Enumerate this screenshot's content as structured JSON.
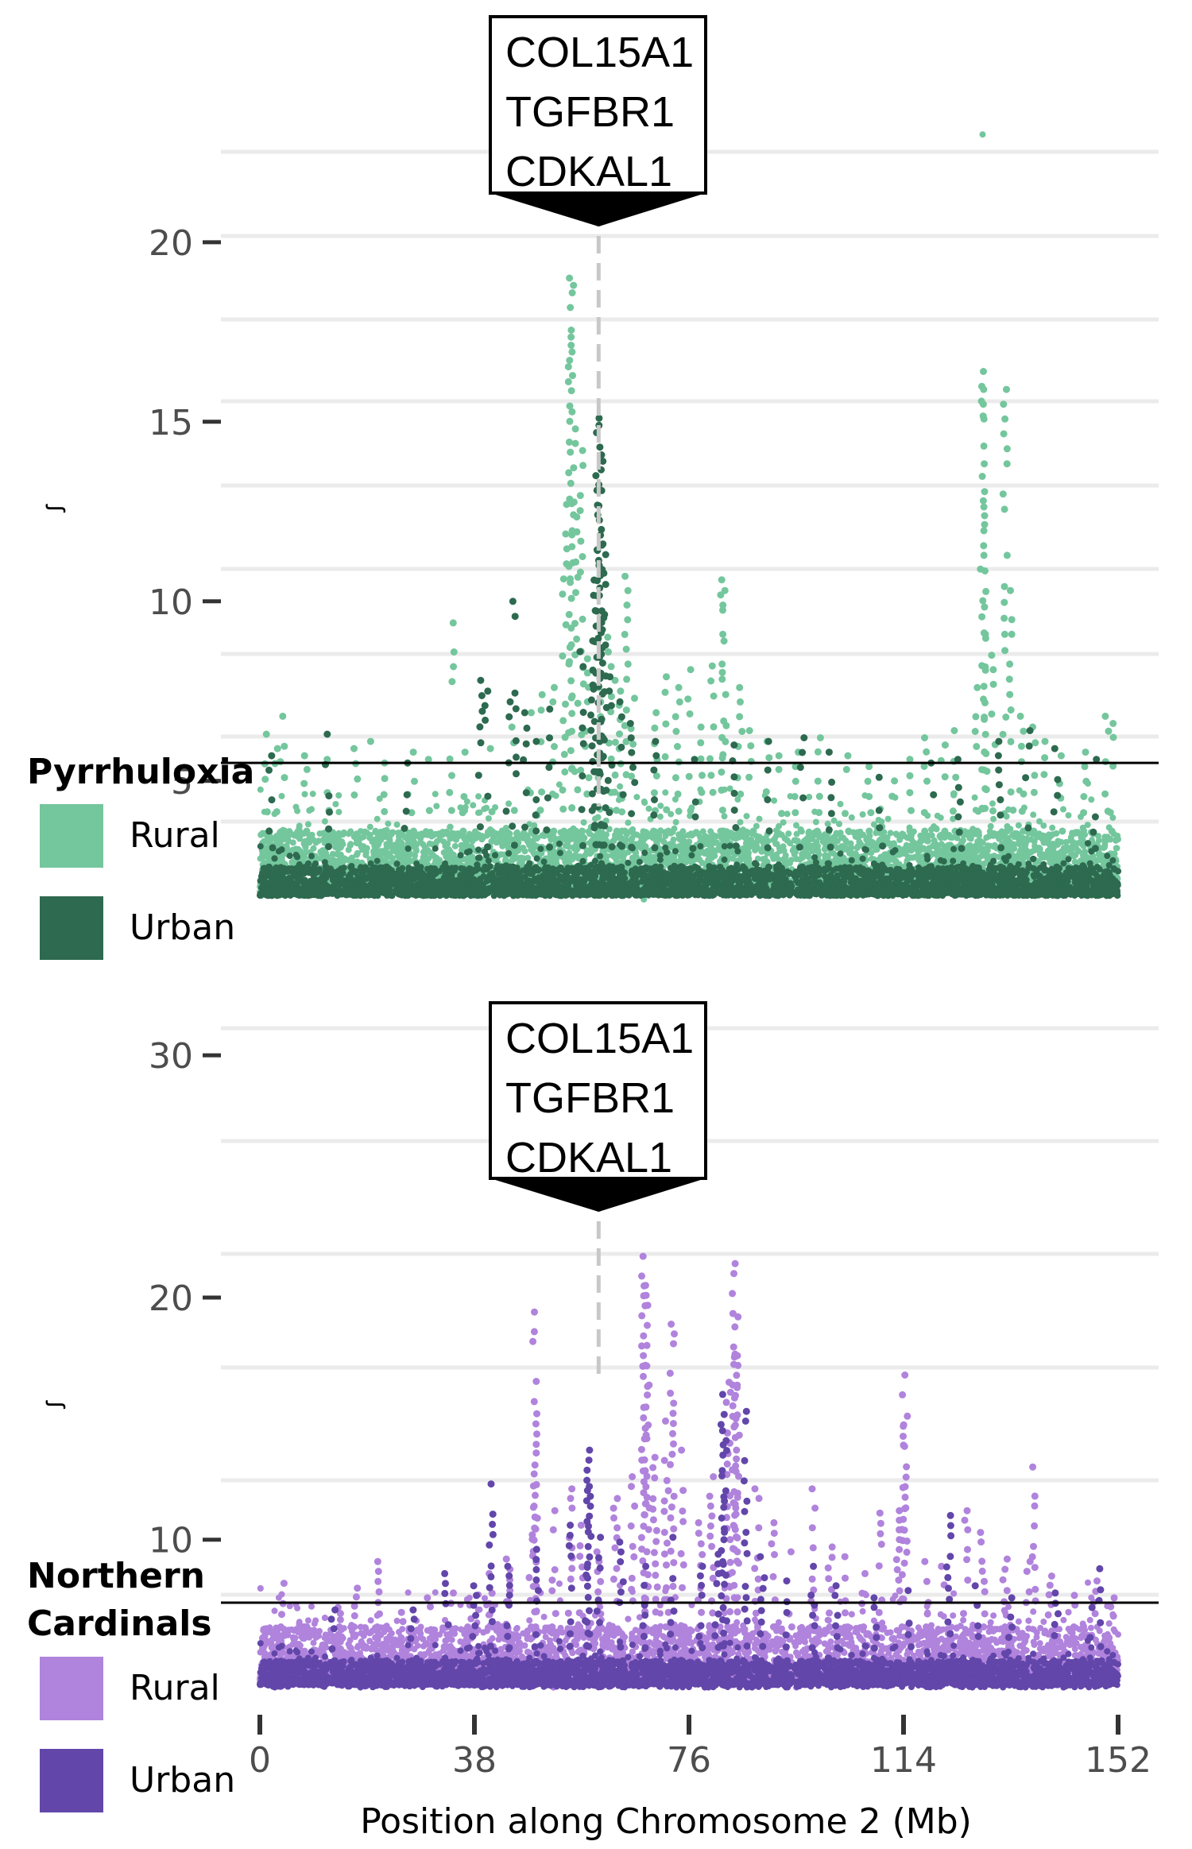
{
  "chart_data": [
    {
      "type": "scatter",
      "panel": "top",
      "ylabel": "ꭍ",
      "yticks": [
        5,
        10,
        15,
        20
      ],
      "ylim": [
        1.3,
        24.2
      ],
      "xlim": [
        0,
        152
      ],
      "threshold": 5.5,
      "gene_label": [
        "COL15A1",
        "TGFBR1",
        "CDKAL1"
      ],
      "gene_position": 60,
      "legend": {
        "title_lines": [
          "Pyrrhuloxia"
        ],
        "entries": [
          {
            "label": "Rural",
            "color": "#74c69d"
          },
          {
            "label": "Urban",
            "color": "#2d6a4f"
          }
        ]
      },
      "series": [
        {
          "name": "Rural",
          "color": "#74c69d",
          "peaks": [
            [
              1,
              6.3
            ],
            [
              3,
              5.9
            ],
            [
              4,
              6.8
            ],
            [
              8,
              5.7
            ],
            [
              12,
              5.6
            ],
            [
              17,
              5.9
            ],
            [
              20,
              6.1
            ],
            [
              22,
              5.5
            ],
            [
              27,
              5.8
            ],
            [
              30,
              5.6
            ],
            [
              34,
              9.4
            ],
            [
              36,
              5.8
            ],
            [
              41,
              5.9
            ],
            [
              45,
              6.5
            ],
            [
              48,
              6.9
            ],
            [
              50,
              7.4
            ],
            [
              52,
              7.6
            ],
            [
              54,
              12.7
            ],
            [
              55,
              19.0
            ],
            [
              55.2,
              18.8
            ],
            [
              56,
              14.8
            ],
            [
              57,
              14.2
            ],
            [
              58,
              8.4
            ],
            [
              60,
              8.0
            ],
            [
              62,
              9.0
            ],
            [
              63,
              7.8
            ],
            [
              64,
              7.5
            ],
            [
              65,
              10.7
            ],
            [
              66,
              7.3
            ],
            [
              70,
              6.9
            ],
            [
              72,
              7.9
            ],
            [
              74,
              7.6
            ],
            [
              76,
              8.1
            ],
            [
              78,
              6.5
            ],
            [
              80,
              8.2
            ],
            [
              82,
              10.6
            ],
            [
              82.2,
              10.3
            ],
            [
              85,
              7.6
            ],
            [
              87,
              6.4
            ],
            [
              90,
              6.1
            ],
            [
              92,
              5.7
            ],
            [
              95,
              5.8
            ],
            [
              99,
              6.2
            ],
            [
              104,
              5.7
            ],
            [
              108,
              5.4
            ],
            [
              112,
              5.0
            ],
            [
              115,
              5.6
            ],
            [
              118,
              6.2
            ],
            [
              121,
              6.0
            ],
            [
              123,
              6.4
            ],
            [
              127,
              7.6
            ],
            [
              128,
              16.4
            ],
            [
              128.2,
              15.9
            ],
            [
              128.4,
              12.8
            ],
            [
              130,
              8.5
            ],
            [
              132,
              15.9
            ],
            [
              133,
              10.3
            ],
            [
              135,
              6.8
            ],
            [
              137,
              6.5
            ],
            [
              139,
              6.1
            ],
            [
              142,
              5.7
            ],
            [
              146,
              5.8
            ],
            [
              150,
              6.8
            ],
            [
              151,
              6.6
            ]
          ],
          "noise": [
            2.0,
            3.6
          ],
          "bottom": [
            1.9,
            2.3
          ],
          "outliers": [
            [
              128,
              23.0
            ],
            [
              68,
              1.7
            ]
          ]
        },
        {
          "name": "Urban",
          "color": "#2d6a4f",
          "peaks": [
            [
              2,
              5.7
            ],
            [
              12,
              6.3
            ],
            [
              26,
              5.5
            ],
            [
              39,
              7.8
            ],
            [
              40,
              7.5
            ],
            [
              44,
              7.2
            ],
            [
              45,
              10.0
            ],
            [
              47,
              6.9
            ],
            [
              49,
              6.1
            ],
            [
              51,
              7.0
            ],
            [
              57,
              8.6
            ],
            [
              59,
              8.9
            ],
            [
              59.5,
              13.5
            ],
            [
              60,
              15.1
            ],
            [
              60.2,
              14.9
            ],
            [
              60.4,
              13.9
            ],
            [
              60.6,
              12.0
            ],
            [
              61,
              11.3
            ],
            [
              62,
              7.9
            ],
            [
              64,
              7.2
            ],
            [
              66,
              6.6
            ],
            [
              70,
              6.1
            ],
            [
              77,
              5.6
            ],
            [
              84,
              6.0
            ],
            [
              90,
              6.1
            ],
            [
              96,
              6.2
            ],
            [
              101,
              5.8
            ],
            [
              110,
              5.1
            ],
            [
              119,
              5.5
            ],
            [
              124,
              5.6
            ],
            [
              131,
              6.1
            ],
            [
              136,
              6.4
            ],
            [
              141,
              5.9
            ],
            [
              148,
              5.6
            ]
          ],
          "noise": [
            1.8,
            2.6
          ],
          "bottom": [
            1.8,
            2.0
          ],
          "outliers": []
        }
      ]
    },
    {
      "type": "scatter",
      "panel": "bottom",
      "ylabel": "ꭍ",
      "yticks": [
        10,
        20,
        30
      ],
      "ylim": [
        3.2,
        32.4
      ],
      "xlim": [
        0,
        152
      ],
      "threshold": 7.4,
      "xticks": [
        0,
        38,
        76,
        114,
        152
      ],
      "xlabel": "Position along Chromosome 2 (Mb)",
      "gene_label": [
        "COL15A1",
        "TGFBR1",
        "CDKAL1"
      ],
      "gene_position": 60,
      "legend": {
        "title_lines": [
          "Northern",
          "Cardinals"
        ],
        "entries": [
          {
            "label": "Rural",
            "color": "#b083dc"
          },
          {
            "label": "Urban",
            "color": "#6246aa"
          }
        ]
      },
      "series": [
        {
          "name": "Rural",
          "color": "#b083dc",
          "peaks": [
            [
              1,
              6.2
            ],
            [
              4,
              8.2
            ],
            [
              8,
              6.4
            ],
            [
              14,
              7.2
            ],
            [
              17,
              8.0
            ],
            [
              21,
              9.1
            ],
            [
              25,
              7.0
            ],
            [
              30,
              7.6
            ],
            [
              34,
              7.8
            ],
            [
              37,
              7.3
            ],
            [
              41,
              8.6
            ],
            [
              44,
              9.2
            ],
            [
              48,
              10.2
            ],
            [
              48.6,
              19.4
            ],
            [
              48.8,
              15.2
            ],
            [
              52,
              11.2
            ],
            [
              55,
              12.1
            ],
            [
              57,
              10.6
            ],
            [
              60,
              9.5
            ],
            [
              63,
              11.7
            ],
            [
              66,
              12.6
            ],
            [
              68,
              21.7
            ],
            [
              68.3,
              20.5
            ],
            [
              68.6,
              17.2
            ],
            [
              70,
              13.4
            ],
            [
              72,
              14.9
            ],
            [
              73,
              18.9
            ],
            [
              75,
              13.7
            ],
            [
              78,
              10.7
            ],
            [
              80,
              12.6
            ],
            [
              83,
              16.5
            ],
            [
              84,
              21.4
            ],
            [
              84.3,
              19.2
            ],
            [
              84.6,
              17.6
            ],
            [
              88,
              12.1
            ],
            [
              91,
              10.7
            ],
            [
              94,
              9.5
            ],
            [
              98,
              12.1
            ],
            [
              101,
              9.7
            ],
            [
              104,
              9.3
            ],
            [
              107,
              8.6
            ],
            [
              110,
              11.1
            ],
            [
              113,
              11.2
            ],
            [
              114,
              16.8
            ],
            [
              114.3,
              15.1
            ],
            [
              118,
              9.1
            ],
            [
              121,
              8.9
            ],
            [
              125,
              11.2
            ],
            [
              128,
              10.3
            ],
            [
              132,
              9.2
            ],
            [
              136,
              9.1
            ],
            [
              137,
              13.0
            ],
            [
              140,
              8.5
            ],
            [
              144,
              7.7
            ],
            [
              148,
              8.3
            ],
            [
              151,
              7.6
            ]
          ],
          "noise": [
            4.2,
            6.4
          ],
          "bottom": [
            4.0,
            4.5
          ],
          "outliers": [
            [
              52,
              3.9
            ],
            [
              95,
              3.9
            ]
          ]
        },
        {
          "name": "Urban",
          "color": "#6246aa",
          "peaks": [
            [
              13,
              7.1
            ],
            [
              27,
              7.1
            ],
            [
              33,
              8.6
            ],
            [
              38,
              8.1
            ],
            [
              41,
              12.3
            ],
            [
              44,
              8.9
            ],
            [
              49,
              9.6
            ],
            [
              55,
              10.6
            ],
            [
              58,
              13.7
            ],
            [
              58.3,
              12.2
            ],
            [
              60,
              10.1
            ],
            [
              64,
              9.9
            ],
            [
              68,
              8.9
            ],
            [
              73,
              10.1
            ],
            [
              78,
              8.9
            ],
            [
              81,
              9.4
            ],
            [
              82,
              16.0
            ],
            [
              82.3,
              14.5
            ],
            [
              86,
              15.3
            ],
            [
              89,
              9.3
            ],
            [
              93,
              8.3
            ],
            [
              98,
              8.9
            ],
            [
              102,
              8.1
            ],
            [
              109,
              7.6
            ],
            [
              115,
              7.9
            ],
            [
              122,
              11.0
            ],
            [
              127,
              8.1
            ],
            [
              133,
              7.6
            ],
            [
              141,
              7.8
            ],
            [
              147,
              7.2
            ],
            [
              149,
              8.8
            ]
          ],
          "noise": [
            4.0,
            5.0
          ],
          "bottom": [
            3.9,
            4.2
          ],
          "outliers": []
        }
      ]
    }
  ]
}
